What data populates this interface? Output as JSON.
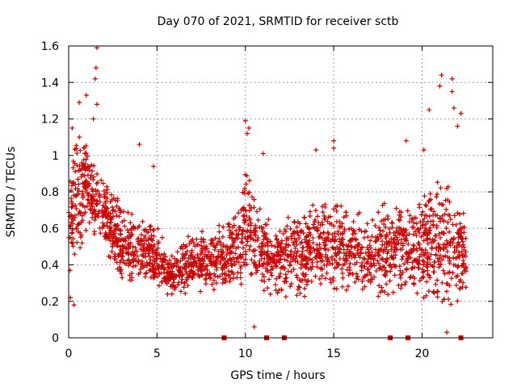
{
  "chart_data": {
    "type": "scatter",
    "title": "Day 070 of 2021, SRMTID for receiver sctb",
    "xlabel": "GPS time / hours",
    "ylabel": "SRMTID / TECUs",
    "xlim": [
      0,
      24
    ],
    "ylim": [
      0,
      1.6
    ],
    "xticks": [
      0,
      5,
      10,
      15,
      20
    ],
    "yticks": [
      0,
      0.2,
      0.4,
      0.6,
      0.8,
      1,
      1.2,
      1.4,
      1.6
    ],
    "xtick_labels": [
      "0",
      "5",
      "10",
      "15",
      "20"
    ],
    "ytick_labels": [
      "0",
      "0.2",
      "0.4",
      "0.6",
      "0.8",
      "1",
      "1.2",
      "1.4",
      "1.6"
    ],
    "grid": true,
    "marker": "+",
    "color": "#cc0000",
    "envelope_note": "Typical band of SRMTID values per hour (dense cloud of + markers)",
    "envelope": {
      "hours": [
        0,
        0.5,
        1,
        1.5,
        2,
        2.5,
        3,
        3.5,
        4,
        4.5,
        5,
        5.5,
        6,
        6.5,
        7,
        7.5,
        8,
        8.5,
        9,
        9.5,
        10,
        10.5,
        11,
        11.5,
        12,
        12.5,
        13,
        13.5,
        14,
        14.5,
        15,
        15.5,
        16,
        16.5,
        17,
        17.5,
        18,
        18.5,
        19,
        19.5,
        20,
        20.5,
        21,
        21.5,
        22,
        22.5
      ],
      "low": [
        0.2,
        0.45,
        0.55,
        0.55,
        0.5,
        0.35,
        0.3,
        0.28,
        0.3,
        0.3,
        0.25,
        0.22,
        0.2,
        0.22,
        0.25,
        0.25,
        0.25,
        0.25,
        0.25,
        0.25,
        0.3,
        0.3,
        0.25,
        0.2,
        0.18,
        0.2,
        0.2,
        0.22,
        0.22,
        0.25,
        0.25,
        0.25,
        0.22,
        0.2,
        0.2,
        0.22,
        0.2,
        0.2,
        0.22,
        0.22,
        0.22,
        0.18,
        0.15,
        0.12,
        0.18,
        0.25
      ],
      "high": [
        0.9,
        1.15,
        1.1,
        0.95,
        0.9,
        0.8,
        0.75,
        0.7,
        0.7,
        0.65,
        0.65,
        0.5,
        0.45,
        0.55,
        0.6,
        0.6,
        0.55,
        0.65,
        0.65,
        0.7,
        0.95,
        0.85,
        0.7,
        0.65,
        0.65,
        0.7,
        0.7,
        0.75,
        0.75,
        0.8,
        0.8,
        0.75,
        0.75,
        0.7,
        0.7,
        0.75,
        0.75,
        0.75,
        0.75,
        0.75,
        0.8,
        0.85,
        0.95,
        1.0,
        0.8,
        0.65
      ]
    },
    "outliers": [
      {
        "x": 1.6,
        "y": 1.59
      },
      {
        "x": 1.55,
        "y": 1.48
      },
      {
        "x": 1.5,
        "y": 1.42
      },
      {
        "x": 0.6,
        "y": 1.29
      },
      {
        "x": 1.0,
        "y": 1.33
      },
      {
        "x": 1.6,
        "y": 1.28
      },
      {
        "x": 0.2,
        "y": 1.15
      },
      {
        "x": 0.6,
        "y": 1.1
      },
      {
        "x": 1.4,
        "y": 1.2
      },
      {
        "x": 4.0,
        "y": 1.06
      },
      {
        "x": 4.8,
        "y": 0.94
      },
      {
        "x": 10.0,
        "y": 1.19
      },
      {
        "x": 10.2,
        "y": 1.15
      },
      {
        "x": 10.1,
        "y": 1.12
      },
      {
        "x": 11.0,
        "y": 1.01
      },
      {
        "x": 14.0,
        "y": 1.03
      },
      {
        "x": 15.0,
        "y": 1.08
      },
      {
        "x": 15.0,
        "y": 1.04
      },
      {
        "x": 19.1,
        "y": 1.08
      },
      {
        "x": 20.1,
        "y": 1.03
      },
      {
        "x": 20.4,
        "y": 1.25
      },
      {
        "x": 21.1,
        "y": 1.44
      },
      {
        "x": 21.0,
        "y": 1.38
      },
      {
        "x": 21.7,
        "y": 1.42
      },
      {
        "x": 21.7,
        "y": 1.35
      },
      {
        "x": 21.8,
        "y": 1.26
      },
      {
        "x": 22.2,
        "y": 1.23
      },
      {
        "x": 22.0,
        "y": 1.16
      },
      {
        "x": 10.5,
        "y": 0.06
      },
      {
        "x": 21.4,
        "y": 0.03
      },
      {
        "x": 0.3,
        "y": 0.18
      },
      {
        "x": 0.1,
        "y": 0.22
      }
    ],
    "zero_markers_x": [
      8.8,
      11.2,
      12.2,
      18.2,
      19.2,
      22.2
    ]
  }
}
